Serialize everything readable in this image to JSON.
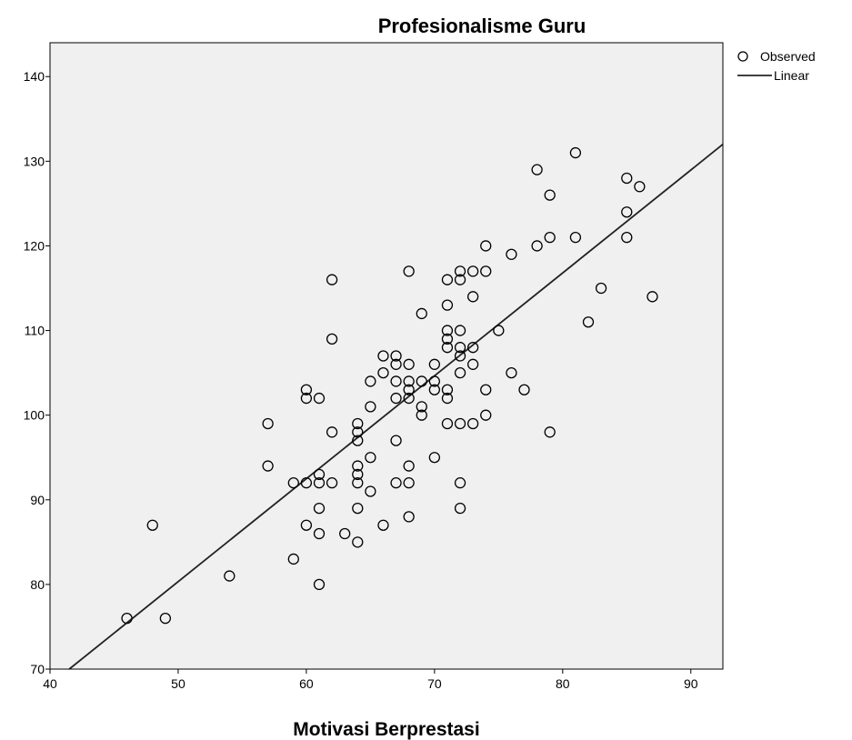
{
  "chart_data": {
    "type": "scatter",
    "title": "Profesionalisme Guru",
    "xlabel": "Motivasi Berprestasi",
    "ylabel": "",
    "xlim": [
      40,
      92.5
    ],
    "ylim": [
      70,
      144
    ],
    "xticks": [
      "40",
      "50",
      "60",
      "70",
      "80",
      "90"
    ],
    "yticks": [
      "70",
      "80",
      "90",
      "100",
      "110",
      "120",
      "130",
      "140"
    ],
    "grid": false,
    "background": "#f0f0f0",
    "legend_position": "top-right",
    "legend": [
      "Observed",
      "Linear"
    ],
    "series": [
      {
        "name": "Observed",
        "kind": "markers",
        "points": [
          [
            46,
            76
          ],
          [
            48,
            87
          ],
          [
            49,
            76
          ],
          [
            54,
            81
          ],
          [
            57,
            99
          ],
          [
            57,
            94
          ],
          [
            59,
            92
          ],
          [
            59,
            83
          ],
          [
            60,
            103
          ],
          [
            60,
            102
          ],
          [
            60,
            92
          ],
          [
            60,
            87
          ],
          [
            61,
            102
          ],
          [
            61,
            93
          ],
          [
            61,
            92
          ],
          [
            61,
            89
          ],
          [
            61,
            86
          ],
          [
            61,
            80
          ],
          [
            62,
            116
          ],
          [
            62,
            109
          ],
          [
            62,
            98
          ],
          [
            62,
            92
          ],
          [
            63,
            86
          ],
          [
            64,
            99
          ],
          [
            64,
            98
          ],
          [
            64,
            97
          ],
          [
            64,
            94
          ],
          [
            64,
            93
          ],
          [
            64,
            92
          ],
          [
            64,
            89
          ],
          [
            64,
            85
          ],
          [
            65,
            104
          ],
          [
            65,
            101
          ],
          [
            65,
            95
          ],
          [
            65,
            91
          ],
          [
            66,
            107
          ],
          [
            66,
            105
          ],
          [
            66,
            87
          ],
          [
            67,
            107
          ],
          [
            67,
            106
          ],
          [
            67,
            104
          ],
          [
            67,
            102
          ],
          [
            67,
            97
          ],
          [
            67,
            92
          ],
          [
            68,
            117
          ],
          [
            68,
            106
          ],
          [
            68,
            104
          ],
          [
            68,
            103
          ],
          [
            68,
            102
          ],
          [
            68,
            94
          ],
          [
            68,
            92
          ],
          [
            68,
            88
          ],
          [
            69,
            112
          ],
          [
            69,
            104
          ],
          [
            69,
            101
          ],
          [
            69,
            100
          ],
          [
            70,
            106
          ],
          [
            70,
            104
          ],
          [
            70,
            103
          ],
          [
            70,
            95
          ],
          [
            71,
            116
          ],
          [
            71,
            113
          ],
          [
            71,
            110
          ],
          [
            71,
            109
          ],
          [
            71,
            108
          ],
          [
            71,
            103
          ],
          [
            71,
            102
          ],
          [
            71,
            99
          ],
          [
            72,
            117
          ],
          [
            72,
            116
          ],
          [
            72,
            110
          ],
          [
            72,
            108
          ],
          [
            72,
            107
          ],
          [
            72,
            105
          ],
          [
            72,
            99
          ],
          [
            72,
            92
          ],
          [
            72,
            89
          ],
          [
            73,
            117
          ],
          [
            73,
            114
          ],
          [
            73,
            108
          ],
          [
            73,
            106
          ],
          [
            73,
            99
          ],
          [
            74,
            120
          ],
          [
            74,
            117
          ],
          [
            74,
            103
          ],
          [
            74,
            100
          ],
          [
            75,
            110
          ],
          [
            76,
            119
          ],
          [
            76,
            105
          ],
          [
            77,
            103
          ],
          [
            78,
            129
          ],
          [
            78,
            120
          ],
          [
            79,
            126
          ],
          [
            79,
            121
          ],
          [
            79,
            98
          ],
          [
            81,
            131
          ],
          [
            81,
            121
          ],
          [
            82,
            111
          ],
          [
            83,
            115
          ],
          [
            85,
            128
          ],
          [
            85,
            124
          ],
          [
            85,
            121
          ],
          [
            86,
            127
          ],
          [
            87,
            114
          ]
        ]
      },
      {
        "name": "Linear",
        "kind": "line",
        "points": [
          [
            41.5,
            70
          ],
          [
            92.5,
            132
          ]
        ]
      }
    ]
  }
}
